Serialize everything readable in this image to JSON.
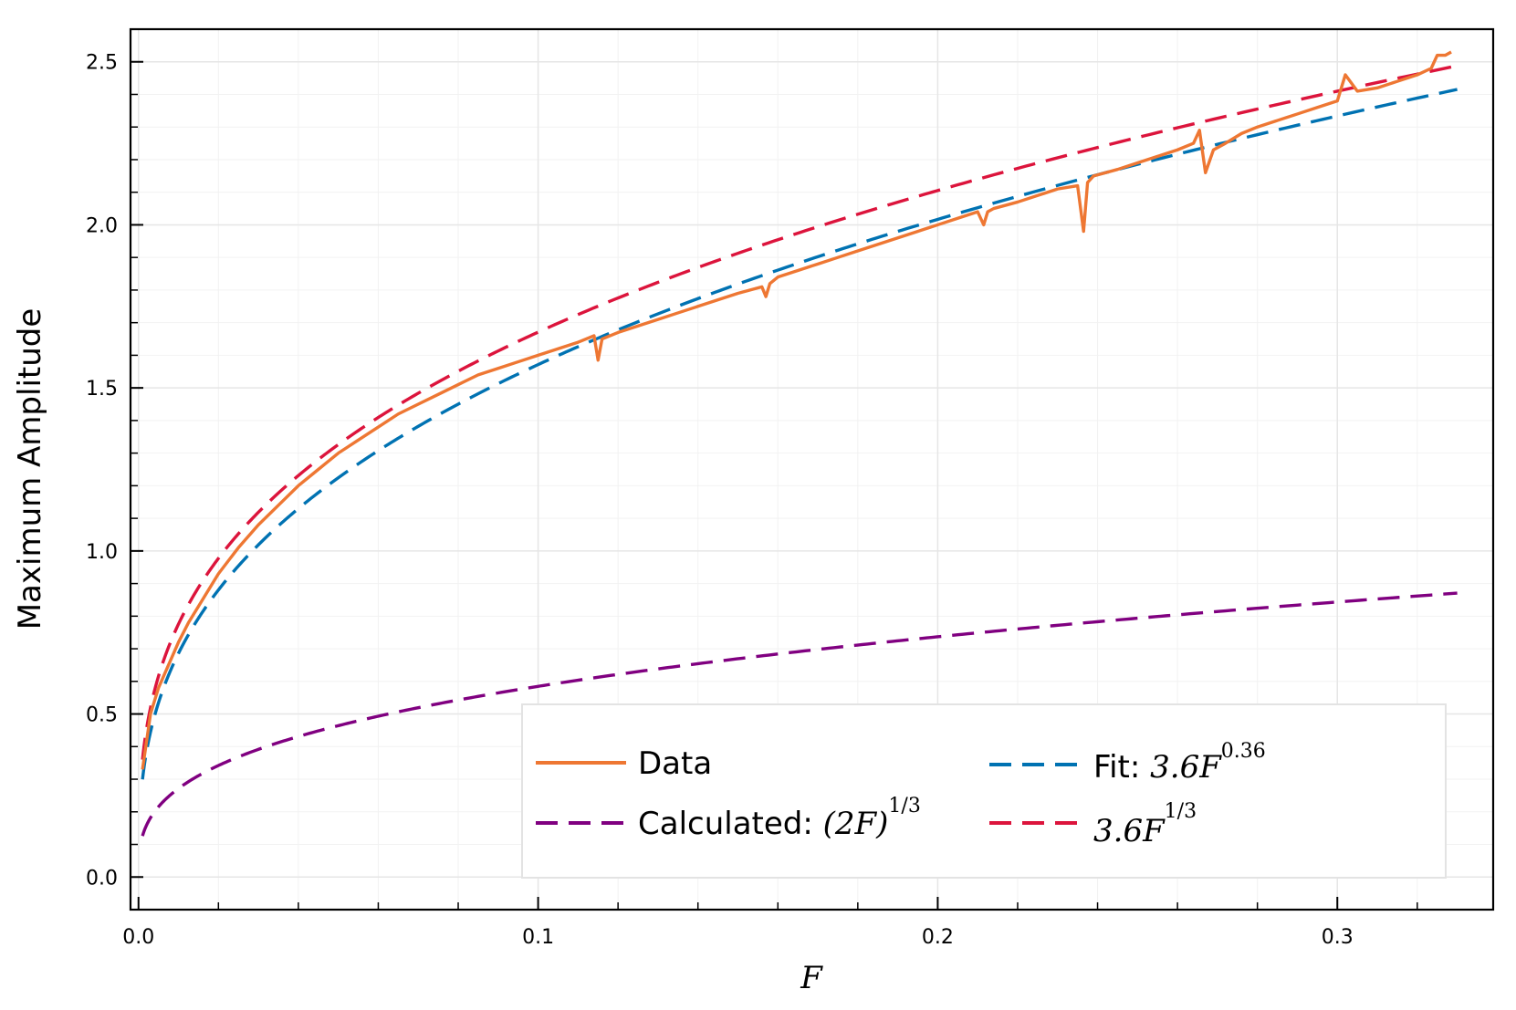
{
  "chart_data": {
    "type": "line",
    "title": "",
    "xlabel": "F",
    "ylabel": "Maximum Amplitude",
    "xlim": [
      -0.002,
      0.339
    ],
    "ylim": [
      -0.1,
      2.6
    ],
    "x_ticks": [
      0.0,
      0.1,
      0.2,
      0.3
    ],
    "x_tick_labels": [
      "0.0",
      "0.1",
      "0.2",
      "0.3"
    ],
    "y_ticks": [
      0.0,
      0.5,
      1.0,
      1.5,
      2.0,
      2.5
    ],
    "y_tick_labels": [
      "0.0",
      "0.5",
      "1.0",
      "1.5",
      "2.0",
      "2.5"
    ],
    "grid": true,
    "legend_position": "bottom-right",
    "series": [
      {
        "name": "Data",
        "style": "solid",
        "color": "#ee7733",
        "x": [
          0.001,
          0.003,
          0.005,
          0.0075,
          0.01,
          0.0125,
          0.015,
          0.02,
          0.025,
          0.03,
          0.035,
          0.04,
          0.045,
          0.05,
          0.055,
          0.06,
          0.065,
          0.07,
          0.075,
          0.08,
          0.085,
          0.09,
          0.095,
          0.1,
          0.105,
          0.11,
          0.114,
          0.115,
          0.116,
          0.12,
          0.125,
          0.13,
          0.135,
          0.14,
          0.145,
          0.15,
          0.156,
          0.157,
          0.158,
          0.16,
          0.165,
          0.17,
          0.175,
          0.18,
          0.185,
          0.19,
          0.195,
          0.2,
          0.205,
          0.21,
          0.2115,
          0.2125,
          0.214,
          0.22,
          0.225,
          0.23,
          0.235,
          0.2365,
          0.2375,
          0.239,
          0.245,
          0.25,
          0.255,
          0.26,
          0.264,
          0.2655,
          0.267,
          0.269,
          0.272,
          0.276,
          0.28,
          0.285,
          0.29,
          0.295,
          0.3,
          0.302,
          0.305,
          0.31,
          0.315,
          0.32,
          0.3235,
          0.325,
          0.327,
          0.3285
        ],
        "y": [
          0.33,
          0.5,
          0.58,
          0.65,
          0.72,
          0.78,
          0.83,
          0.93,
          1.01,
          1.08,
          1.14,
          1.2,
          1.25,
          1.3,
          1.34,
          1.38,
          1.42,
          1.45,
          1.48,
          1.51,
          1.54,
          1.56,
          1.58,
          1.6,
          1.62,
          1.64,
          1.66,
          1.585,
          1.65,
          1.67,
          1.69,
          1.71,
          1.73,
          1.75,
          1.77,
          1.79,
          1.81,
          1.78,
          1.82,
          1.84,
          1.86,
          1.88,
          1.9,
          1.92,
          1.94,
          1.96,
          1.98,
          2.0,
          2.02,
          2.04,
          2.0,
          2.04,
          2.05,
          2.07,
          2.09,
          2.11,
          2.12,
          1.98,
          2.13,
          2.15,
          2.17,
          2.19,
          2.21,
          2.23,
          2.25,
          2.29,
          2.16,
          2.23,
          2.25,
          2.28,
          2.3,
          2.32,
          2.34,
          2.36,
          2.38,
          2.46,
          2.41,
          2.42,
          2.44,
          2.46,
          2.48,
          2.52,
          2.52,
          2.53
        ]
      },
      {
        "name": "Calculated: (2F)^{1/3}",
        "style": "dashed",
        "color": "#800080",
        "formula": "(2F)^(1/3)",
        "x_range": [
          0.001,
          0.33
        ]
      },
      {
        "name": "Fit: 3.6F^{0.36}",
        "style": "dashed",
        "color": "#0072b2",
        "formula": "3.6F^0.36",
        "x_range": [
          0.001,
          0.33
        ]
      },
      {
        "name": "3.6F^{1/3}",
        "style": "dashed",
        "color": "#dc143c",
        "formula": "3.6F^(1/3)",
        "x_range": [
          0.001,
          0.33
        ]
      }
    ],
    "legend": {
      "data_label": "Data",
      "calc_prefix": "Calculated: ",
      "calc_math": "(2F)",
      "calc_exp": "1/3",
      "fit_prefix": "Fit: ",
      "fit_math": "3.6F",
      "fit_exp": "0.36",
      "cbrt_math": "3.6F",
      "cbrt_exp": "1/3"
    }
  }
}
